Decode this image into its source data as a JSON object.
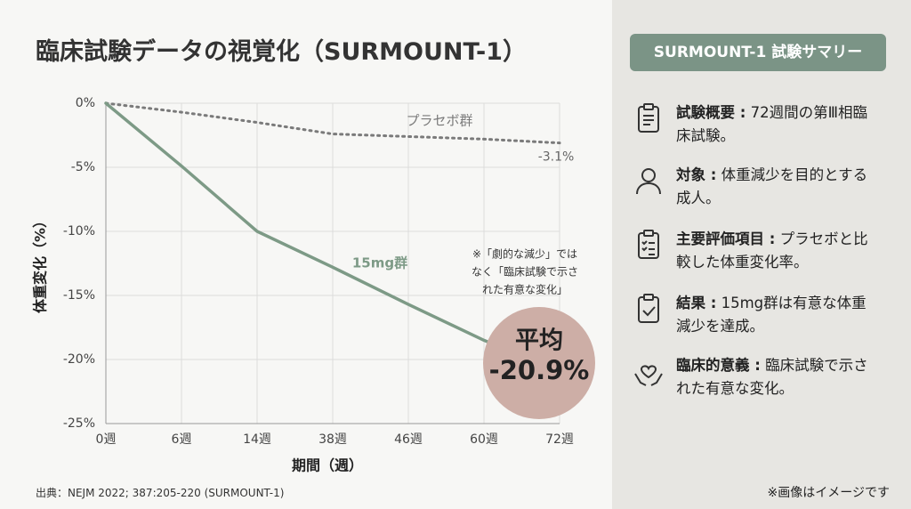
{
  "title": "臨床試験データの視覚化（SURMOUNT-1）",
  "chart_data": {
    "type": "line",
    "x_label": "期間（週）",
    "y_label": "体重変化（%）",
    "categories": [
      "0週",
      "6週",
      "14週",
      "38週",
      "46週",
      "60週",
      "72週"
    ],
    "series": [
      {
        "name": "プラセボ群",
        "color": "#7a7a7a",
        "style": "dotted",
        "values": [
          0,
          -0.7,
          -1.5,
          -2.4,
          -2.6,
          -2.8,
          -3.1
        ],
        "value_labels": [
          null,
          null,
          null,
          null,
          null,
          null,
          "-3.1%"
        ]
      },
      {
        "name": "15mg群",
        "color": "#7d9a86",
        "style": "solid",
        "values": [
          0,
          -4.9,
          -10,
          -12.8,
          -15.7,
          -18.5,
          -20.9
        ],
        "value_labels": [
          null,
          null,
          null,
          null,
          null,
          null,
          "-20.9%"
        ]
      }
    ],
    "ylim": [
      -25,
      0
    ],
    "yticks": [
      {
        "value": 0,
        "label": "0%"
      },
      {
        "value": -5,
        "label": "-5%"
      },
      {
        "value": -10,
        "label": "-10%"
      },
      {
        "value": -15,
        "label": "-15%"
      },
      {
        "value": -20,
        "label": "-20%"
      },
      {
        "value": -25,
        "label": "-25%"
      }
    ],
    "grid": true,
    "annotations": {
      "average": "平均",
      "note": [
        "※「劇的な減少」では",
        "なく「臨床試験で示さ",
        "れた有意な変化」"
      ]
    }
  },
  "summary": {
    "title": "SURMOUNT-1 試験サマリー",
    "items": [
      {
        "label": "試験概要 :",
        "text": "72週間の第Ⅲ相臨床試験。"
      },
      {
        "label": "対象 :",
        "text": "体重減少を目的とする成人。"
      },
      {
        "label": "主要評価項目 :",
        "text": "プラセボと比較した体重変化率。"
      },
      {
        "label": "結果 :",
        "text": "15mg群は有意な体重減少を達成。"
      },
      {
        "label": "臨床的意義 :",
        "text": "臨床試験で示された有意な変化。"
      }
    ]
  },
  "source": "出典：NEJM 2022; 387:205-220 (SURMOUNT-1)",
  "disclaimer": "※画像はイメージです"
}
